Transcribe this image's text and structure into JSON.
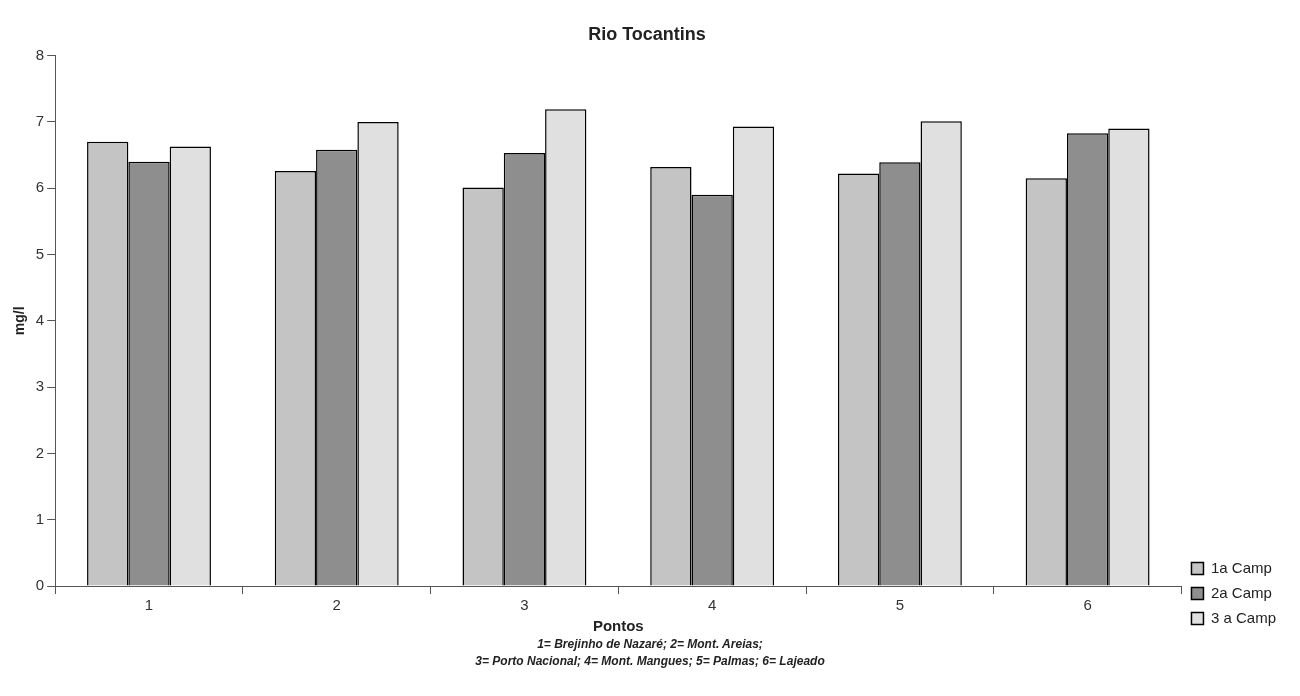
{
  "chart_data": {
    "type": "bar",
    "title": "Rio Tocantins",
    "xlabel": "Pontos",
    "ylabel": "mg/l",
    "categories": [
      "1",
      "2",
      "3",
      "4",
      "5",
      "6"
    ],
    "series": [
      {
        "name": "1a Camp",
        "color": "#c4c4c4",
        "values": [
          6.7,
          6.26,
          6.01,
          6.32,
          6.22,
          6.15
        ]
      },
      {
        "name": "2a Camp",
        "color": "#8e8e8e",
        "values": [
          6.4,
          6.58,
          6.53,
          5.9,
          6.39,
          6.83
        ]
      },
      {
        "name": "3 a Camp",
        "color": "#e0e0e0",
        "values": [
          6.63,
          7.0,
          7.19,
          6.93,
          7.01,
          6.9
        ]
      }
    ],
    "ylim": [
      0,
      8
    ],
    "yticks": [
      0,
      1,
      2,
      3,
      4,
      5,
      6,
      7,
      8
    ],
    "grid": false,
    "legend": "bottom right",
    "annotations": [
      "1= Brejinho de Nazaré; 2= Mont. Areias;",
      "3= Porto Nacional; 4= Mont. Mangues; 5= Palmas; 6= Lajeado"
    ]
  }
}
